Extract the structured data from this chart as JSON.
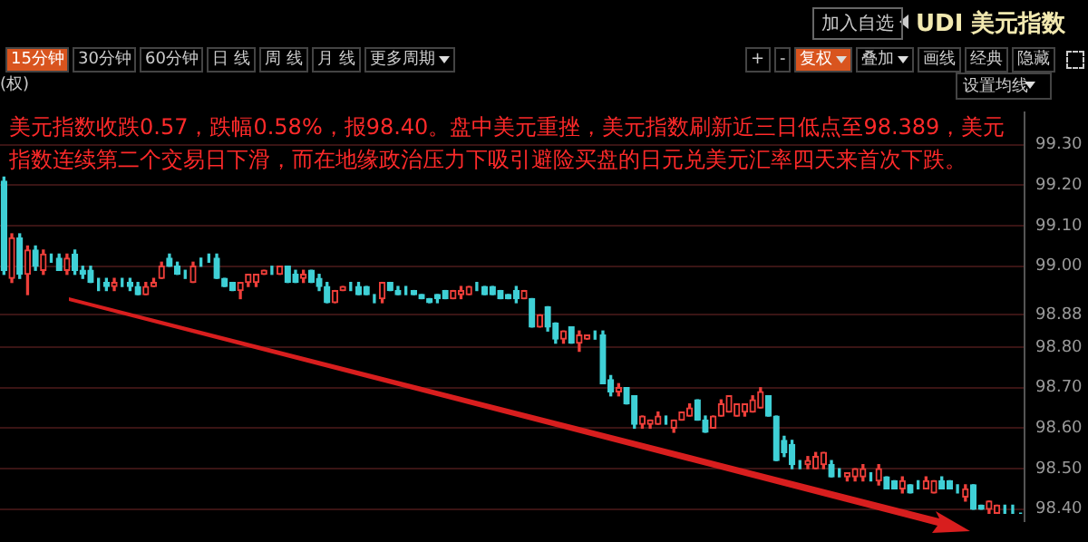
{
  "chart_data": {
    "type": "candlestick",
    "title": "UDI 美元指数",
    "annotations": [
      "美元指数收跌0.57，跌幅0.58%，报98.40。盘中美元重挫，美元指数刷新近三日低点至98.389，美元指数连续第二个交易日下滑，而在地缘政治压力下吸引避险买盘的日元兑美元汇率四天来首次下跌。",
      "加入自选",
      "15分钟",
      "30分钟",
      "60分钟",
      "日 线",
      "周 线",
      "月 线",
      "更多周期",
      "+",
      "-",
      "复权",
      "叠加",
      "画线",
      "经典",
      "隐藏",
      "(权)",
      "设置均线"
    ],
    "categories": [
      null,
      null,
      null,
      null,
      null,
      null,
      null,
      null,
      null,
      null,
      null,
      null,
      null,
      null,
      null,
      null,
      null,
      null,
      null,
      null,
      null,
      null,
      null,
      null,
      null,
      null,
      null,
      null,
      null,
      null,
      null,
      null,
      null,
      null,
      null,
      null,
      null,
      null,
      null,
      null,
      null,
      null,
      null,
      null,
      null,
      null,
      null,
      null,
      null,
      null,
      null,
      null,
      null,
      null,
      null,
      null,
      null,
      null,
      null,
      null,
      null,
      null,
      null,
      null,
      null,
      null,
      null,
      null,
      null,
      null,
      null,
      null,
      null,
      null,
      null,
      null,
      null,
      null,
      null,
      null,
      null,
      null,
      null,
      null,
      null,
      null,
      null,
      null,
      null,
      null,
      null,
      null,
      null,
      null,
      null,
      null,
      null,
      null,
      null,
      null,
      null,
      null,
      null,
      null,
      null,
      null,
      null,
      null,
      null,
      null,
      null,
      null,
      null,
      null,
      null,
      null,
      null,
      null,
      null,
      null,
      null,
      null,
      null,
      null,
      null,
      null,
      null,
      null,
      null,
      null
    ],
    "ohlc": [
      [
        99.21,
        99.22,
        98.98,
        98.99
      ],
      [
        98.97,
        99.08,
        98.96,
        99.07
      ],
      [
        99.07,
        99.08,
        98.97,
        98.98
      ],
      [
        98.98,
        99.05,
        98.93,
        99.04
      ],
      [
        99.04,
        99.05,
        98.99,
        99.0
      ],
      [
        98.99,
        99.04,
        98.98,
        99.03
      ],
      [
        99.02,
        99.03,
        99.01,
        99.02
      ],
      [
        99.02,
        99.03,
        98.99,
        98.99
      ],
      [
        98.99,
        99.03,
        98.98,
        99.02
      ],
      [
        99.03,
        99.04,
        98.98,
        98.99
      ],
      [
        98.99,
        99.0,
        98.97,
        98.98
      ],
      [
        98.99,
        99.0,
        98.96,
        98.96
      ],
      [
        98.96,
        98.97,
        98.94,
        98.96
      ],
      [
        98.96,
        98.97,
        98.94,
        98.95
      ],
      [
        98.95,
        98.97,
        98.94,
        98.96
      ],
      [
        98.96,
        98.97,
        98.95,
        98.96
      ],
      [
        98.96,
        98.97,
        98.94,
        98.95
      ],
      [
        98.95,
        98.96,
        98.93,
        98.93
      ],
      [
        98.93,
        98.96,
        98.93,
        98.95
      ],
      [
        98.95,
        98.97,
        98.95,
        98.96
      ],
      [
        98.97,
        99.01,
        98.97,
        99.0
      ],
      [
        99.02,
        99.03,
        99.0,
        99.0
      ],
      [
        99.0,
        99.01,
        98.98,
        98.98
      ],
      [
        98.98,
        98.99,
        98.97,
        98.98
      ],
      [
        98.96,
        99.01,
        98.96,
        99.0
      ],
      [
        99.01,
        99.02,
        99.0,
        99.01
      ],
      [
        99.02,
        99.03,
        99.01,
        99.02
      ],
      [
        99.02,
        99.03,
        98.97,
        98.97
      ],
      [
        98.97,
        98.97,
        98.95,
        98.95
      ],
      [
        98.96,
        98.96,
        98.94,
        98.94
      ],
      [
        98.94,
        98.96,
        98.92,
        98.96
      ],
      [
        98.96,
        98.98,
        98.95,
        98.98
      ],
      [
        98.96,
        98.98,
        98.95,
        98.98
      ],
      [
        98.98,
        98.99,
        98.98,
        98.99
      ],
      [
        98.99,
        99.0,
        98.98,
        98.99
      ],
      [
        98.98,
        99.0,
        98.98,
        99.0
      ],
      [
        99.0,
        99.0,
        98.96,
        98.96
      ],
      [
        98.98,
        98.99,
        98.96,
        98.96
      ],
      [
        98.97,
        98.99,
        98.96,
        98.98
      ],
      [
        98.99,
        98.99,
        98.96,
        98.96
      ],
      [
        98.97,
        98.98,
        98.94,
        98.95
      ],
      [
        98.95,
        98.96,
        98.91,
        98.91
      ],
      [
        98.91,
        98.94,
        98.91,
        98.94
      ],
      [
        98.94,
        98.95,
        98.94,
        98.95
      ],
      [
        98.95,
        98.96,
        98.94,
        98.95
      ],
      [
        98.95,
        98.96,
        98.93,
        98.93
      ],
      [
        98.95,
        98.95,
        98.93,
        98.93
      ],
      [
        98.92,
        98.93,
        98.91,
        98.92
      ],
      [
        98.92,
        98.96,
        98.91,
        98.96
      ],
      [
        98.96,
        98.96,
        98.94,
        98.94
      ],
      [
        98.94,
        98.95,
        98.93,
        98.93
      ],
      [
        98.94,
        98.95,
        98.93,
        98.94
      ],
      [
        98.94,
        98.94,
        98.93,
        98.93
      ],
      [
        98.93,
        98.93,
        98.92,
        98.92
      ],
      [
        98.92,
        98.92,
        98.91,
        98.91
      ],
      [
        98.93,
        98.93,
        98.91,
        98.92
      ],
      [
        98.94,
        98.94,
        98.92,
        98.92
      ],
      [
        98.92,
        98.94,
        98.92,
        98.94
      ],
      [
        98.93,
        98.95,
        98.92,
        98.94
      ],
      [
        98.93,
        98.95,
        98.93,
        98.95
      ],
      [
        98.95,
        98.96,
        98.94,
        98.95
      ],
      [
        98.95,
        98.95,
        98.93,
        98.93
      ],
      [
        98.95,
        98.95,
        98.93,
        98.93
      ],
      [
        98.94,
        98.94,
        98.92,
        98.92
      ],
      [
        98.93,
        98.93,
        98.92,
        98.92
      ],
      [
        98.94,
        98.95,
        98.91,
        98.92
      ],
      [
        98.92,
        98.94,
        98.92,
        98.94
      ],
      [
        98.92,
        98.92,
        98.85,
        98.85
      ],
      [
        98.85,
        98.88,
        98.85,
        98.88
      ],
      [
        98.9,
        98.9,
        98.84,
        98.85
      ],
      [
        98.86,
        98.86,
        98.81,
        98.82
      ],
      [
        98.82,
        98.84,
        98.81,
        98.84
      ],
      [
        98.85,
        98.85,
        98.81,
        98.81
      ],
      [
        98.81,
        98.84,
        98.79,
        98.83
      ],
      [
        98.82,
        98.83,
        98.82,
        98.83
      ],
      [
        98.83,
        98.84,
        98.82,
        98.83
      ],
      [
        98.83,
        98.84,
        98.71,
        98.71
      ],
      [
        98.72,
        98.73,
        98.68,
        98.69
      ],
      [
        98.69,
        98.71,
        98.68,
        98.7
      ],
      [
        98.7,
        98.7,
        98.66,
        98.66
      ],
      [
        98.68,
        98.68,
        98.6,
        98.61
      ],
      [
        98.61,
        98.63,
        98.6,
        98.63
      ],
      [
        98.61,
        98.62,
        98.6,
        98.62
      ],
      [
        98.61,
        98.64,
        98.61,
        98.63
      ],
      [
        98.62,
        98.63,
        98.61,
        98.62
      ],
      [
        98.6,
        98.62,
        98.59,
        98.62
      ],
      [
        98.62,
        98.64,
        98.62,
        98.64
      ],
      [
        98.63,
        98.66,
        98.63,
        98.65
      ],
      [
        98.67,
        98.67,
        98.62,
        98.62
      ],
      [
        98.62,
        98.63,
        98.59,
        98.59
      ],
      [
        98.6,
        98.63,
        98.6,
        98.63
      ],
      [
        98.63,
        98.67,
        98.63,
        98.66
      ],
      [
        98.64,
        98.68,
        98.64,
        98.68
      ],
      [
        98.63,
        98.66,
        98.63,
        98.66
      ],
      [
        98.64,
        98.66,
        98.63,
        98.66
      ],
      [
        98.64,
        98.68,
        98.64,
        98.67
      ],
      [
        98.65,
        98.7,
        98.65,
        98.69
      ],
      [
        98.68,
        98.68,
        98.63,
        98.63
      ],
      [
        98.63,
        98.63,
        98.52,
        98.52
      ],
      [
        98.57,
        98.58,
        98.53,
        98.54
      ],
      [
        98.56,
        98.57,
        98.5,
        98.51
      ],
      [
        98.51,
        98.52,
        98.5,
        98.51
      ],
      [
        98.51,
        98.53,
        98.5,
        98.52
      ],
      [
        98.5,
        98.54,
        98.5,
        98.53
      ],
      [
        98.51,
        98.54,
        98.5,
        98.54
      ],
      [
        98.51,
        98.52,
        98.48,
        98.48
      ],
      [
        98.49,
        98.5,
        98.48,
        98.49
      ],
      [
        98.48,
        98.49,
        98.47,
        98.49
      ],
      [
        98.48,
        98.5,
        98.47,
        98.5
      ],
      [
        98.48,
        98.51,
        98.47,
        98.5
      ],
      [
        98.48,
        98.49,
        98.47,
        98.48
      ],
      [
        98.47,
        98.51,
        98.46,
        98.5
      ],
      [
        98.48,
        98.48,
        98.45,
        98.45
      ],
      [
        98.47,
        98.47,
        98.45,
        98.45
      ],
      [
        98.45,
        98.48,
        98.44,
        98.47
      ],
      [
        98.46,
        98.46,
        98.44,
        98.44
      ],
      [
        98.46,
        98.47,
        98.45,
        98.46
      ],
      [
        98.45,
        98.48,
        98.45,
        98.47
      ],
      [
        98.44,
        98.47,
        98.44,
        98.47
      ],
      [
        98.47,
        98.48,
        98.45,
        98.45
      ],
      [
        98.47,
        98.47,
        98.45,
        98.45
      ],
      [
        98.45,
        98.46,
        98.44,
        98.45
      ],
      [
        98.43,
        98.46,
        98.42,
        98.45
      ],
      [
        98.46,
        98.46,
        98.4,
        98.4
      ],
      [
        98.41,
        98.41,
        98.4,
        98.4
      ],
      [
        98.4,
        98.42,
        98.39,
        98.42
      ],
      [
        98.39,
        98.41,
        98.39,
        98.41
      ],
      [
        98.4,
        98.41,
        98.39,
        98.4
      ],
      [
        98.4,
        98.41,
        98.39,
        98.4
      ],
      [
        98.39,
        98.39,
        98.39,
        98.39
      ]
    ],
    "colors": [
      "#3fd0d6",
      "#ee3f3a",
      "#3fd0d6",
      "#ee3f3a",
      "#3fd0d6",
      "#ee3f3a",
      "#3fd0d6",
      "#3fd0d6",
      "#ee3f3a",
      "#3fd0d6",
      "#3fd0d6",
      "#3fd0d6",
      "#3fd0d6",
      "#3fd0d6",
      "#ee3f3a",
      "#3fd0d6",
      "#3fd0d6",
      "#3fd0d6",
      "#ee3f3a",
      "#ee3f3a",
      "#ee3f3a",
      "#3fd0d6",
      "#3fd0d6",
      "#3fd0d6",
      "#ee3f3a",
      "#3fd0d6",
      "#3fd0d6",
      "#3fd0d6",
      "#3fd0d6",
      "#3fd0d6",
      "#ee3f3a",
      "#ee3f3a",
      "#ee3f3a",
      "#ee3f3a",
      "#3fd0d6",
      "#ee3f3a",
      "#3fd0d6",
      "#3fd0d6",
      "#ee3f3a",
      "#3fd0d6",
      "#3fd0d6",
      "#3fd0d6",
      "#ee3f3a",
      "#ee3f3a",
      "#3fd0d6",
      "#3fd0d6",
      "#3fd0d6",
      "#3fd0d6",
      "#ee3f3a",
      "#3fd0d6",
      "#3fd0d6",
      "#3fd0d6",
      "#3fd0d6",
      "#3fd0d6",
      "#3fd0d6",
      "#3fd0d6",
      "#3fd0d6",
      "#ee3f3a",
      "#ee3f3a",
      "#ee3f3a",
      "#3fd0d6",
      "#3fd0d6",
      "#3fd0d6",
      "#3fd0d6",
      "#3fd0d6",
      "#3fd0d6",
      "#ee3f3a",
      "#3fd0d6",
      "#ee3f3a",
      "#3fd0d6",
      "#3fd0d6",
      "#ee3f3a",
      "#3fd0d6",
      "#ee3f3a",
      "#ee3f3a",
      "#3fd0d6",
      "#3fd0d6",
      "#3fd0d6",
      "#ee3f3a",
      "#3fd0d6",
      "#3fd0d6",
      "#ee3f3a",
      "#ee3f3a",
      "#ee3f3a",
      "#3fd0d6",
      "#ee3f3a",
      "#ee3f3a",
      "#ee3f3a",
      "#3fd0d6",
      "#3fd0d6",
      "#ee3f3a",
      "#ee3f3a",
      "#ee3f3a",
      "#ee3f3a",
      "#ee3f3a",
      "#ee3f3a",
      "#ee3f3a",
      "#3fd0d6",
      "#3fd0d6",
      "#3fd0d6",
      "#3fd0d6",
      "#3fd0d6",
      "#ee3f3a",
      "#ee3f3a",
      "#ee3f3a",
      "#3fd0d6",
      "#3fd0d6",
      "#ee3f3a",
      "#ee3f3a",
      "#ee3f3a",
      "#3fd0d6",
      "#ee3f3a",
      "#3fd0d6",
      "#3fd0d6",
      "#ee3f3a",
      "#3fd0d6",
      "#3fd0d6",
      "#ee3f3a",
      "#ee3f3a",
      "#3fd0d6",
      "#3fd0d6",
      "#3fd0d6",
      "#ee3f3a",
      "#3fd0d6",
      "#3fd0d6",
      "#ee3f3a",
      "#ee3f3a",
      "#3fd0d6",
      "#3fd0d6",
      "#3fd0d6"
    ],
    "ylim": [
      98.37,
      99.38
    ],
    "yticks": [
      {
        "value": 98.4,
        "label": "98.40"
      },
      {
        "value": 98.5,
        "label": "98.50"
      },
      {
        "value": 98.6,
        "label": "98.60"
      },
      {
        "value": 98.7,
        "label": "98.70"
      },
      {
        "value": 98.8,
        "label": "98.80"
      },
      {
        "value": 98.88,
        "label": "98.88"
      },
      {
        "value": 99.0,
        "label": "99.00"
      },
      {
        "value": 99.1,
        "label": "99.10"
      },
      {
        "value": 99.2,
        "label": "99.20"
      },
      {
        "value": 99.3,
        "label": "99.30"
      }
    ],
    "grid": "y",
    "legend": false,
    "tick_labels": "y"
  }
}
